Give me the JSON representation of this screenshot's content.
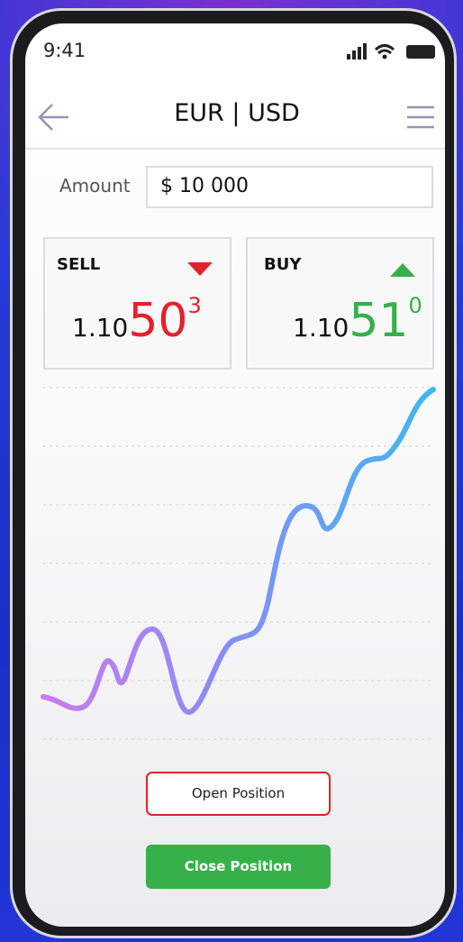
{
  "status_bar": {
    "time": "9:41"
  },
  "header": {
    "title": "EUR | USD"
  },
  "amount": {
    "label": "Amount",
    "value": "$ 10 000"
  },
  "sell": {
    "label": "SELL",
    "price_prefix": "1.10",
    "price_main": "50",
    "price_sup": "3"
  },
  "buy": {
    "label": "BUY",
    "price_prefix": "1.10",
    "price_main": "51",
    "price_sup": "0"
  },
  "buttons": {
    "open": "Open Position",
    "close": "Close Position"
  }
}
